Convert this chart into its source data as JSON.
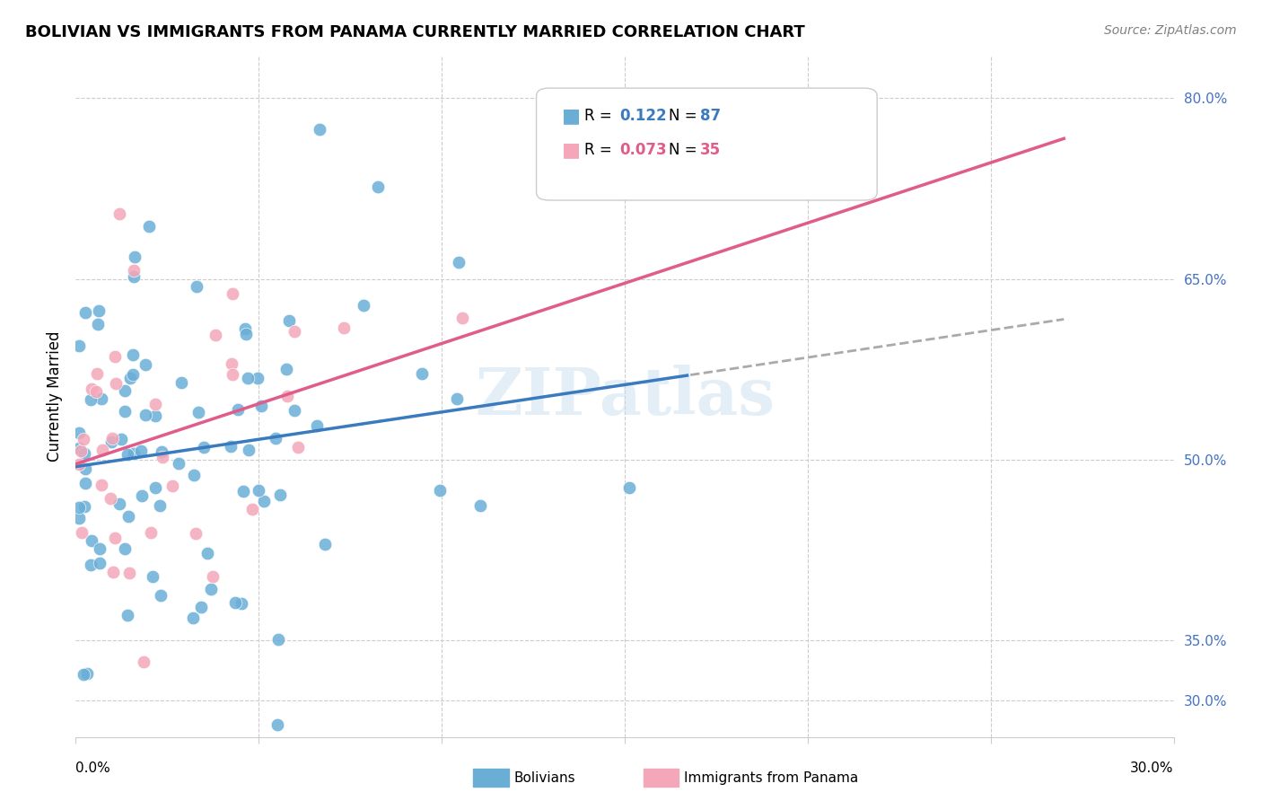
{
  "title": "BOLIVIAN VS IMMIGRANTS FROM PANAMA CURRENTLY MARRIED CORRELATION CHART",
  "source": "Source: ZipAtlas.com",
  "ylabel": "Currently Married",
  "xmin": 0.0,
  "xmax": 0.3,
  "ymin": 0.27,
  "ymax": 0.835,
  "right_yticks": [
    0.8,
    0.65,
    0.5,
    0.35,
    0.3
  ],
  "right_yticklabels": [
    "80.0%",
    "65.0%",
    "50.0%",
    "35.0%",
    "30.0%"
  ],
  "color_blue": "#6aaed6",
  "color_pink": "#f4a7b9",
  "color_blue_line": "#3a7abf",
  "color_pink_line": "#e05c8a",
  "color_dashed": "#aaaaaa",
  "watermark": "ZIPatlas",
  "R1": "0.122",
  "N1": "87",
  "R2": "0.073",
  "N2": "35"
}
